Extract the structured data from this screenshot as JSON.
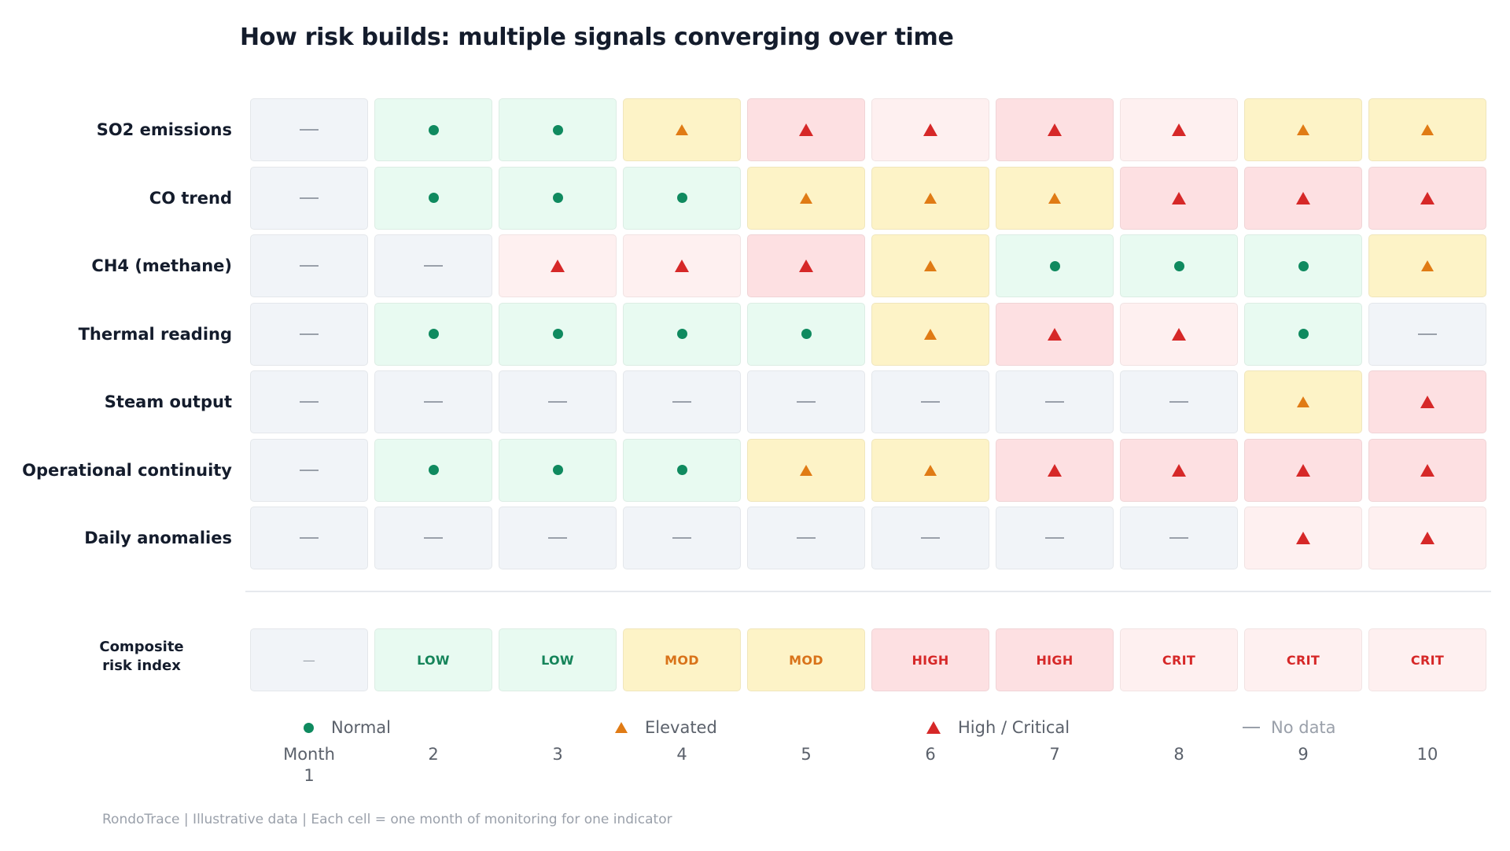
{
  "chart_data": {
    "type": "heatmap",
    "title": "How risk builds: multiple signals converging over time",
    "x_axis_first_label": "Month",
    "x": [
      "1",
      "2",
      "3",
      "4",
      "5",
      "6",
      "7",
      "8",
      "9",
      "10"
    ],
    "series": [
      {
        "name": "SO2 emissions",
        "values": [
          "none",
          "normal",
          "normal",
          "elevated",
          "high",
          "critical",
          "high",
          "critical",
          "elevated",
          "elevated"
        ]
      },
      {
        "name": "CO trend",
        "values": [
          "none",
          "normal",
          "normal",
          "normal",
          "elevated",
          "elevated",
          "elevated",
          "high",
          "high",
          "high"
        ]
      },
      {
        "name": "CH4 (methane)",
        "values": [
          "none",
          "none",
          "critical",
          "critical",
          "high",
          "elevated",
          "normal",
          "normal",
          "normal",
          "elevated"
        ]
      },
      {
        "name": "Thermal reading",
        "values": [
          "none",
          "normal",
          "normal",
          "normal",
          "normal",
          "elevated",
          "high",
          "critical",
          "normal",
          "none"
        ]
      },
      {
        "name": "Steam output",
        "values": [
          "none",
          "none",
          "none",
          "none",
          "none",
          "none",
          "none",
          "none",
          "elevated",
          "high"
        ]
      },
      {
        "name": "Operational continuity",
        "values": [
          "none",
          "normal",
          "normal",
          "normal",
          "elevated",
          "elevated",
          "high",
          "high",
          "high",
          "high"
        ]
      },
      {
        "name": "Daily anomalies",
        "values": [
          "none",
          "none",
          "none",
          "none",
          "none",
          "none",
          "none",
          "none",
          "critical",
          "critical"
        ]
      }
    ],
    "composite": {
      "name": "Composite risk index",
      "values": [
        "—",
        "LOW",
        "LOW",
        "MOD",
        "MOD",
        "HIGH",
        "HIGH",
        "CRIT",
        "CRIT",
        "CRIT"
      ],
      "levels": [
        "none",
        "low",
        "low",
        "mod",
        "mod",
        "high",
        "high",
        "crit",
        "crit",
        "crit"
      ]
    },
    "legend": [
      {
        "key": "normal",
        "label": "Normal"
      },
      {
        "key": "elevated",
        "label": "Elevated"
      },
      {
        "key": "high",
        "label": "High / Critical"
      },
      {
        "key": "none",
        "label": "No data"
      }
    ],
    "legend_placement": "bottom",
    "colors": {
      "normal": "#0f8a5f",
      "elevated": "#e07b15",
      "high": "#d62828",
      "none": "#9aa0aa"
    }
  },
  "footer": "RondoTrace  |  Illustrative data  |  Each cell = one month of monitoring for one indicator"
}
